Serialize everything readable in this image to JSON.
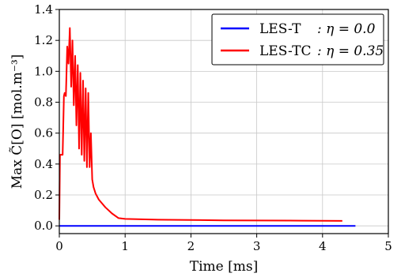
{
  "chart_data": {
    "type": "line",
    "xlabel": "Time [ms]",
    "ylabel": "Max C̃[O] [mol.m⁻³]",
    "xlim": [
      0,
      5
    ],
    "ylim": [
      -0.05,
      1.4
    ],
    "xticks": [
      "0",
      "1",
      "2",
      "3",
      "4",
      "5"
    ],
    "yticks": [
      "0.0",
      "0.2",
      "0.4",
      "0.6",
      "0.8",
      "1.0",
      "1.2",
      "1.4"
    ],
    "grid": true,
    "legend_position": "top-right",
    "series": [
      {
        "name": "LES-T",
        "eta_label": ": η = 0.0",
        "color": "#0000ff",
        "x": [
          0.0,
          4.5
        ],
        "y": [
          0.0,
          0.0
        ]
      },
      {
        "name": "LES-TC",
        "eta_label": ": η = 0.35",
        "color": "#ff0000",
        "x": [
          0.0,
          0.01,
          0.03,
          0.05,
          0.07,
          0.08,
          0.1,
          0.12,
          0.14,
          0.16,
          0.18,
          0.2,
          0.22,
          0.24,
          0.26,
          0.28,
          0.3,
          0.32,
          0.34,
          0.36,
          0.38,
          0.4,
          0.42,
          0.44,
          0.46,
          0.48,
          0.5,
          0.52,
          0.55,
          0.6,
          0.7,
          0.8,
          0.9,
          1.0,
          1.5,
          2.0,
          2.5,
          3.0,
          3.5,
          4.0,
          4.3
        ],
        "y": [
          0.04,
          0.46,
          0.46,
          0.46,
          0.84,
          0.86,
          0.84,
          1.16,
          1.05,
          1.28,
          0.9,
          1.2,
          0.78,
          1.1,
          0.65,
          1.04,
          0.5,
          0.99,
          0.46,
          0.94,
          0.42,
          0.89,
          0.38,
          0.86,
          0.38,
          0.6,
          0.3,
          0.25,
          0.21,
          0.17,
          0.12,
          0.08,
          0.05,
          0.045,
          0.04,
          0.038,
          0.036,
          0.035,
          0.034,
          0.033,
          0.032
        ]
      }
    ]
  }
}
